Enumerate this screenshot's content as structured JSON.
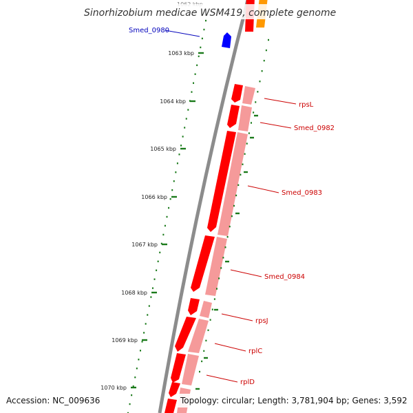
{
  "title": "Sinorhizobium medicae WSM419, complete genome",
  "top_partial_tick": "1062 kbp",
  "ticks": [
    {
      "label": "1063 kbp"
    },
    {
      "label": "1064 kbp"
    },
    {
      "label": "1065 kbp"
    },
    {
      "label": "1066 kbp"
    },
    {
      "label": "1067 kbp"
    },
    {
      "label": "1068 kbp"
    },
    {
      "label": "1069 kbp"
    },
    {
      "label": "1070 kbp"
    }
  ],
  "colors": {
    "backbone": "#8c8c8c",
    "gene_forward": "#ff0000",
    "gene_light": "#f59a9a",
    "gene_orange": "#ff9900",
    "gene_blue": "#0000ff",
    "tick_green": "#1a7a1a",
    "label_red": "#cc0000",
    "label_blue": "#0000bb"
  },
  "gene_labels": [
    {
      "name": "Smed_0980",
      "color": "blue"
    },
    {
      "name": "rpsL",
      "color": "red"
    },
    {
      "name": "Smed_0982",
      "color": "red"
    },
    {
      "name": "Smed_0983",
      "color": "red"
    },
    {
      "name": "Smed_0984",
      "color": "red"
    },
    {
      "name": "rpsJ",
      "color": "red"
    },
    {
      "name": "rplC",
      "color": "red"
    },
    {
      "name": "rplD",
      "color": "red"
    }
  ],
  "accession": "Accession: NC_009636",
  "topology": "Topology: circular; Length: 3,781,904 bp; Genes: 3,592"
}
